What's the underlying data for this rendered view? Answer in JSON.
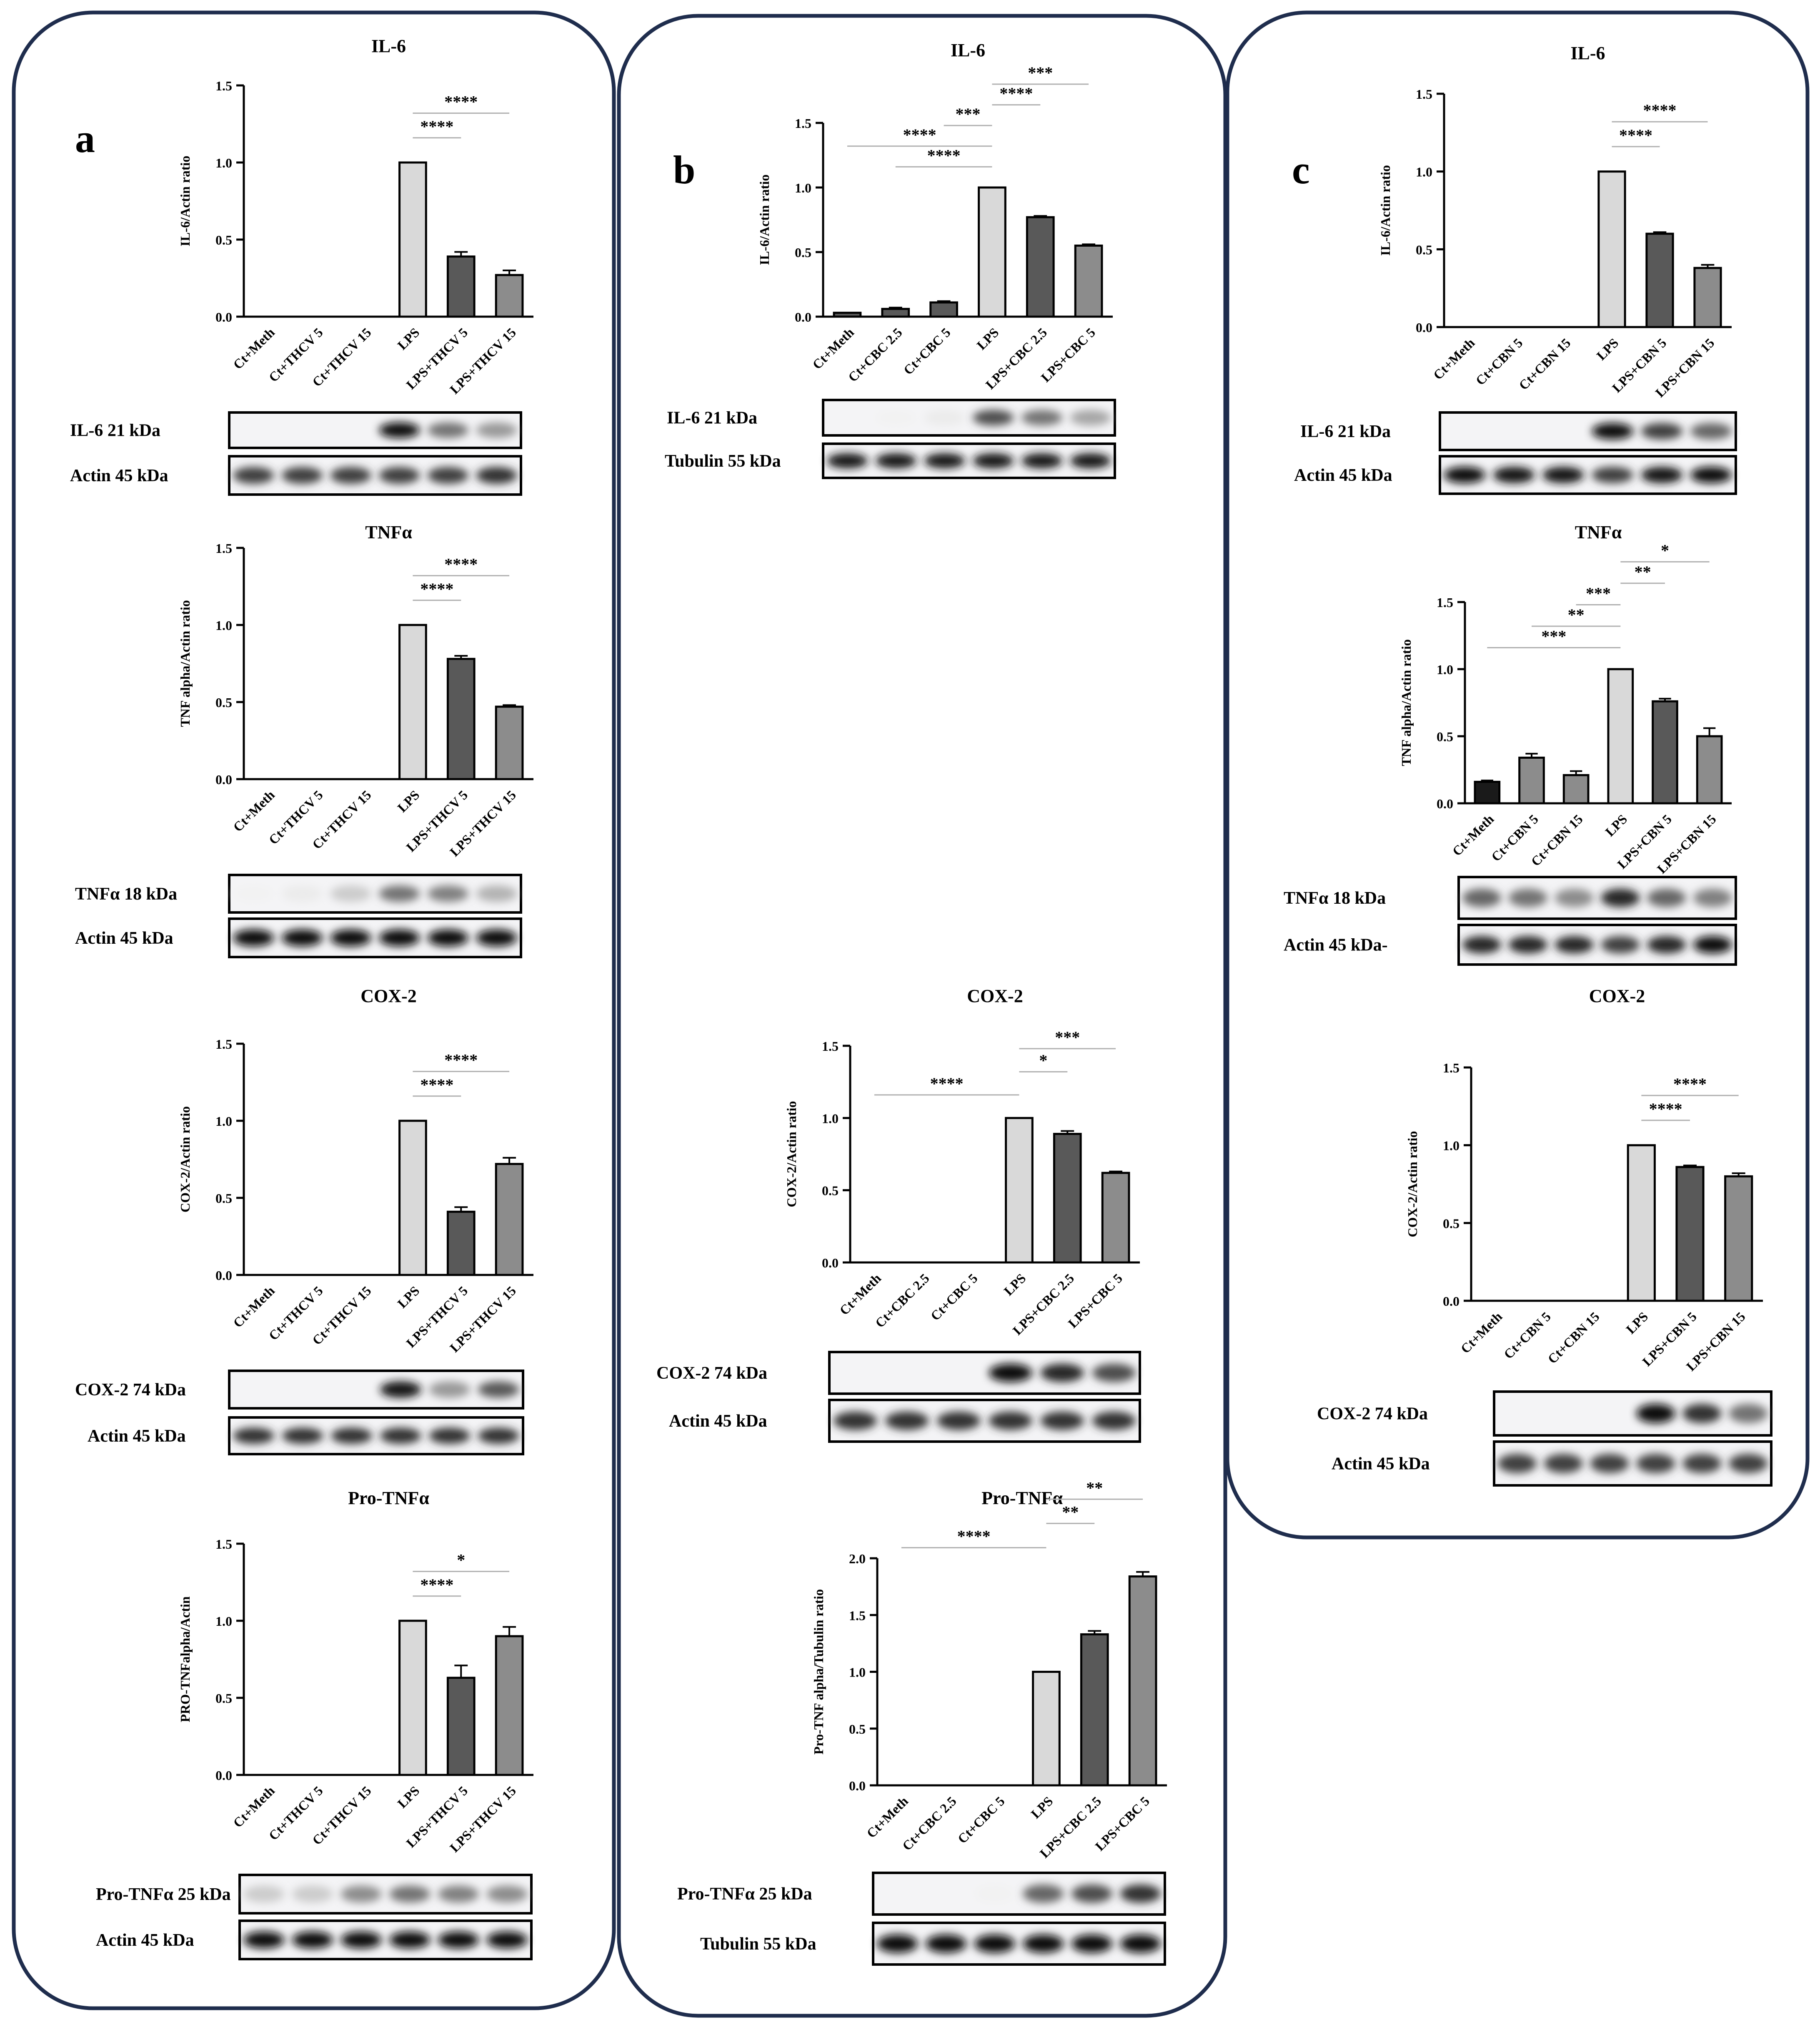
{
  "panel_labels": [
    "a",
    "b",
    "c"
  ],
  "band_labels": {
    "a_il6": "IL-6 21 kDa",
    "a_il6_actin": "Actin 45 kDa",
    "a_tnf": "TNFα 18 kDa",
    "a_tnf_actin": "Actin 45 kDa",
    "a_cox": "COX-2 74 kDa",
    "a_cox_actin": "Actin 45 kDa",
    "a_pro": "Pro-TNFα 25 kDa",
    "a_pro_actin": "Actin 45 kDa",
    "b_il6": "IL-6 21 kDa",
    "b_il6_tub": "Tubulin 55 kDa",
    "b_cox": "COX-2 74 kDa",
    "b_cox_actin": "Actin 45 kDa",
    "b_pro": "Pro-TNFα 25 kDa",
    "b_pro_tub": "Tubulin 55 kDa",
    "c_il6": "IL-6 21 kDa",
    "c_il6_actin": "Actin 45 kDa",
    "c_tnf": "TNFα 18 kDa",
    "c_tnf_actin": "Actin 45 kDa-",
    "c_cox": "COX-2 74 kDa",
    "c_cox_actin": "Actin 45 kDa"
  },
  "colors": {
    "light": "#d9d9d9",
    "dark": "#595959",
    "mid": "#8c8c8c",
    "black": "#1a1a1a",
    "frame": "#1f2d4d"
  },
  "chart_data": [
    {
      "id": "a_il6",
      "type": "bar",
      "title": "IL-6",
      "ylabel": "IL-6/Actin ratio",
      "ylim": [
        0,
        1.5
      ],
      "yticks": [
        "0.0",
        "0.5",
        "1.0",
        "1.5"
      ],
      "categories": [
        "Ct+Meth",
        "Ct+THCV 5",
        "Ct+THCV 15",
        "LPS",
        "LPS+THCV 5",
        "LPS+THCV 15"
      ],
      "values": [
        0,
        0,
        0,
        1.0,
        0.39,
        0.27
      ],
      "errors": [
        0,
        0,
        0,
        0,
        0.03,
        0.03
      ],
      "colors": [
        "light",
        "light",
        "light",
        "light",
        "dark",
        "mid"
      ],
      "significance": [
        {
          "from": 3,
          "to": 4,
          "label": "****"
        },
        {
          "from": 3,
          "to": 5,
          "label": "****"
        }
      ]
    },
    {
      "id": "a_tnf",
      "type": "bar",
      "title": "TNFα",
      "ylabel": "TNF alpha/Actin ratio",
      "ylim": [
        0,
        1.5
      ],
      "yticks": [
        "0.0",
        "0.5",
        "1.0",
        "1.5"
      ],
      "categories": [
        "Ct+Meth",
        "Ct+THCV 5",
        "Ct+THCV 15",
        "LPS",
        "LPS+THCV 5",
        "LPS+THCV 15"
      ],
      "values": [
        0,
        0,
        0,
        1.0,
        0.78,
        0.47
      ],
      "errors": [
        0,
        0,
        0,
        0,
        0.02,
        0.01
      ],
      "colors": [
        "light",
        "light",
        "light",
        "light",
        "dark",
        "mid"
      ],
      "significance": [
        {
          "from": 3,
          "to": 4,
          "label": "****"
        },
        {
          "from": 3,
          "to": 5,
          "label": "****"
        }
      ]
    },
    {
      "id": "a_cox",
      "type": "bar",
      "title": "COX-2",
      "ylabel": "COX-2/Actin ratio",
      "ylim": [
        0,
        1.5
      ],
      "yticks": [
        "0.0",
        "0.5",
        "1.0",
        "1.5"
      ],
      "categories": [
        "Ct+Meth",
        "Ct+THCV 5",
        "Ct+THCV 15",
        "LPS",
        "LPS+THCV 5",
        "LPS+THCV 15"
      ],
      "values": [
        0,
        0,
        0,
        1.0,
        0.41,
        0.72
      ],
      "errors": [
        0,
        0,
        0,
        0,
        0.03,
        0.04
      ],
      "colors": [
        "light",
        "light",
        "light",
        "light",
        "dark",
        "mid"
      ],
      "significance": [
        {
          "from": 3,
          "to": 4,
          "label": "****"
        },
        {
          "from": 3,
          "to": 5,
          "label": "****"
        }
      ]
    },
    {
      "id": "a_pro",
      "type": "bar",
      "title": "Pro-TNFα",
      "ylabel": "PRO-TNFalpha/Actin",
      "ylim": [
        0,
        1.5
      ],
      "yticks": [
        "0.0",
        "0.5",
        "1.0",
        "1.5"
      ],
      "categories": [
        "Ct+Meth",
        "Ct+THCV 5",
        "Ct+THCV 15",
        "LPS",
        "LPS+THCV 5",
        "LPS+THCV 15"
      ],
      "values": [
        0,
        0,
        0,
        1.0,
        0.63,
        0.9
      ],
      "errors": [
        0,
        0,
        0,
        0,
        0.08,
        0.06
      ],
      "colors": [
        "light",
        "light",
        "light",
        "light",
        "dark",
        "mid"
      ],
      "significance": [
        {
          "from": 3,
          "to": 4,
          "label": "****"
        },
        {
          "from": 3,
          "to": 5,
          "label": "*"
        }
      ]
    },
    {
      "id": "b_il6",
      "type": "bar",
      "title": "IL-6",
      "ylabel": "IL-6/Actin ratio",
      "ylim": [
        0,
        1.5
      ],
      "yticks": [
        "0.0",
        "0.5",
        "1.0",
        "1.5"
      ],
      "categories": [
        "Ct+Meth",
        "Ct+CBC 2.5",
        "Ct+CBC 5",
        "LPS",
        "LPS+CBC 2.5",
        "LPS+CBC 5"
      ],
      "values": [
        0.03,
        0.06,
        0.11,
        1.0,
        0.77,
        0.55
      ],
      "errors": [
        0,
        0.01,
        0.01,
        0,
        0.01,
        0.01
      ],
      "colors": [
        "dark",
        "dark",
        "dark",
        "light",
        "dark",
        "mid"
      ],
      "significance": [
        {
          "from": 1,
          "to": 3,
          "label": "****"
        },
        {
          "from": 0,
          "to": 3,
          "label": "****"
        },
        {
          "from": 2,
          "to": 3,
          "label": "***"
        },
        {
          "from": 3,
          "to": 4,
          "label": "****"
        },
        {
          "from": 3,
          "to": 5,
          "label": "***"
        }
      ]
    },
    {
      "id": "b_cox",
      "type": "bar",
      "title": "COX-2",
      "ylabel": "COX-2/Actin ratio",
      "ylim": [
        0,
        1.5
      ],
      "yticks": [
        "0.0",
        "0.5",
        "1.0",
        "1.5"
      ],
      "categories": [
        "Ct+Meth",
        "Ct+CBC 2.5",
        "Ct+CBC 5",
        "LPS",
        "LPS+CBC 2.5",
        "LPS+CBC 5"
      ],
      "values": [
        0,
        0,
        0,
        1.0,
        0.89,
        0.62
      ],
      "errors": [
        0,
        0,
        0,
        0,
        0.02,
        0.01
      ],
      "colors": [
        "light",
        "light",
        "light",
        "light",
        "dark",
        "mid"
      ],
      "significance": [
        {
          "from": 0,
          "to": 3,
          "label": "****"
        },
        {
          "from": 3,
          "to": 4,
          "label": "*"
        },
        {
          "from": 3,
          "to": 5,
          "label": "***"
        }
      ]
    },
    {
      "id": "b_pro",
      "type": "bar",
      "title": "Pro-TNFα",
      "ylabel": "Pro-TNF alpha/Tubulin ratio",
      "ylim": [
        0,
        2.0
      ],
      "yticks": [
        "0.0",
        "0.5",
        "1.0",
        "1.5",
        "2.0"
      ],
      "categories": [
        "Ct+Meth",
        "Ct+CBC 2.5",
        "Ct+CBC 5",
        "LPS",
        "LPS+CBC 2.5",
        "LPS+CBC 5"
      ],
      "values": [
        0,
        0,
        0,
        1.0,
        1.33,
        1.84
      ],
      "errors": [
        0,
        0,
        0,
        0,
        0.03,
        0.04
      ],
      "colors": [
        "light",
        "light",
        "light",
        "light",
        "dark",
        "mid"
      ],
      "significance": [
        {
          "from": 0,
          "to": 3,
          "label": "****"
        },
        {
          "from": 3,
          "to": 4,
          "label": "**"
        },
        {
          "from": 3,
          "to": 5,
          "label": "**"
        }
      ]
    },
    {
      "id": "c_il6",
      "type": "bar",
      "title": "IL-6",
      "ylabel": "IL-6/Actin ratio",
      "ylim": [
        0,
        1.5
      ],
      "yticks": [
        "0.0",
        "0.5",
        "1.0",
        "1.5"
      ],
      "categories": [
        "Ct+Meth",
        "Ct+CBN 5",
        "Ct+CBN 15",
        "LPS",
        "LPS+CBN 5",
        "LPS+CBN 15"
      ],
      "values": [
        0,
        0,
        0,
        1.0,
        0.6,
        0.38
      ],
      "errors": [
        0,
        0,
        0,
        0,
        0.01,
        0.02
      ],
      "colors": [
        "light",
        "light",
        "light",
        "light",
        "dark",
        "mid"
      ],
      "significance": [
        {
          "from": 3,
          "to": 4,
          "label": "****"
        },
        {
          "from": 3,
          "to": 5,
          "label": "****"
        }
      ]
    },
    {
      "id": "c_tnf",
      "type": "bar",
      "title": "TNFα",
      "ylabel": "TNF alpha/Actin ratio",
      "ylim": [
        0,
        1.5
      ],
      "yticks": [
        "0.0",
        "0.5",
        "1.0",
        "1.5"
      ],
      "categories": [
        "Ct+Meth",
        "Ct+CBN 5",
        "Ct+CBN 15",
        "LPS",
        "LPS+CBN 5",
        "LPS+CBN 15"
      ],
      "values": [
        0.16,
        0.34,
        0.21,
        1.0,
        0.76,
        0.5
      ],
      "errors": [
        0.01,
        0.03,
        0.03,
        0,
        0.02,
        0.06
      ],
      "colors": [
        "black",
        "mid",
        "mid",
        "light",
        "dark",
        "mid"
      ],
      "significance": [
        {
          "from": 0,
          "to": 3,
          "label": "***"
        },
        {
          "from": 1,
          "to": 3,
          "label": "**"
        },
        {
          "from": 2,
          "to": 3,
          "label": "***"
        },
        {
          "from": 3,
          "to": 4,
          "label": "**"
        },
        {
          "from": 3,
          "to": 5,
          "label": "*"
        }
      ]
    },
    {
      "id": "c_cox",
      "type": "bar",
      "title": "COX-2",
      "ylabel": "COX-2/Actin ratio",
      "ylim": [
        0,
        1.5
      ],
      "yticks": [
        "0.0",
        "0.5",
        "1.0",
        "1.5"
      ],
      "categories": [
        "Ct+Meth",
        "Ct+CBN 5",
        "Ct+CBN 15",
        "LPS",
        "LPS+CBN 5",
        "LPS+CBN 15"
      ],
      "values": [
        0,
        0,
        0,
        1.0,
        0.86,
        0.8
      ],
      "errors": [
        0,
        0,
        0,
        0,
        0.01,
        0.02
      ],
      "colors": [
        "light",
        "light",
        "light",
        "light",
        "dark",
        "mid"
      ],
      "significance": [
        {
          "from": 3,
          "to": 4,
          "label": "****"
        },
        {
          "from": 3,
          "to": 5,
          "label": "****"
        }
      ]
    }
  ]
}
